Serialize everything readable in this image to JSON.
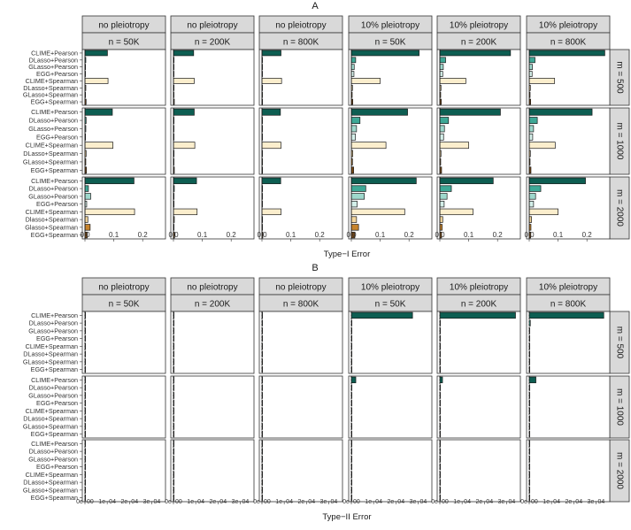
{
  "colors": {
    "strip_fill": "#d9d9d9",
    "strip_stroke": "#333333",
    "panel_stroke": "#333333",
    "bar_stroke": "#1a1a1a",
    "bar_pearson_1": "#0d5e52",
    "bar_pearson_2": "#3ea896",
    "bar_pearson_3": "#9ed8cc",
    "bar_pearson_4": "#d4efe9",
    "bar_spearman_1": "#fbeecd",
    "bar_spearman_2": "#f2d59b",
    "bar_spearman_3": "#c7842d",
    "bar_spearman_4": "#7d4a12"
  },
  "chart_data": [
    {
      "type": "bar",
      "orientation": "horizontal",
      "panel_label": "A",
      "xlabel": "Type−I Error",
      "xlim": [
        0,
        0.27
      ],
      "xticks": [
        0.0,
        0.1,
        0.2
      ],
      "xtick_labels": [
        "0.0",
        "0.1",
        "0.2"
      ],
      "grid": false,
      "col_strips_top": [
        "no pleiotropy",
        "no pleiotropy",
        "no pleiotropy",
        "10% pleiotropy",
        "10% pleiotropy",
        "10% pleiotropy"
      ],
      "col_strips_bottom": [
        "n = 50K",
        "n = 200K",
        "n = 800K",
        "n = 50K",
        "n = 200K",
        "n = 800K"
      ],
      "row_strips": [
        "m = 500",
        "m = 1000",
        "m = 2000"
      ],
      "categories": [
        "CLIME+Pearson",
        "DLasso+Pearson",
        "GLasso+Pearson",
        "EGG+Pearson",
        "CLIME+Spearman",
        "DLasso+Spearman",
        "GLasso+Spearman",
        "EGG+Spearman"
      ],
      "row_categories": [
        [
          "CLIME+Pearson",
          "DLasso+Pearson",
          "GLasso+Pearson",
          "EGG+Pearson",
          "CLIME+Spearman",
          "DLasso+Spearman",
          "GLasso+Spearman",
          "EGG+Spearman"
        ],
        [
          "CLIME+Pearson",
          "DLasso+Pearson",
          "GLasso+Pearson",
          "EGG+Pearson",
          "CLIME+Spearman",
          "DLasso+Spearman",
          "GLasso+Spearman",
          "EGG+Spearman"
        ],
        [
          "CLIME+Pearson",
          "DLasso+Pearson",
          "GLasso+Pearson",
          "EGG+Pearson",
          "CLIME+Spearman",
          "Dlasso+Spearman",
          "Glasso+Spearman",
          "EGG+Spearman"
        ]
      ],
      "panels": [
        [
          [
            0.078,
            0.003,
            0.002,
            0.001,
            0.08,
            0.003,
            0.002,
            0.004
          ],
          [
            0.07,
            0.002,
            0.001,
            0.001,
            0.072,
            0.002,
            0.001,
            0.003
          ],
          [
            0.066,
            0.001,
            0.001,
            0.001,
            0.068,
            0.001,
            0.001,
            0.002
          ],
          [
            0.235,
            0.015,
            0.01,
            0.009,
            0.1,
            0.004,
            0.003,
            0.005
          ],
          [
            0.245,
            0.02,
            0.012,
            0.01,
            0.09,
            0.004,
            0.003,
            0.005
          ],
          [
            0.262,
            0.02,
            0.011,
            0.01,
            0.088,
            0.004,
            0.003,
            0.005
          ]
        ],
        [
          [
            0.095,
            0.004,
            0.003,
            0.002,
            0.097,
            0.004,
            0.003,
            0.005
          ],
          [
            0.072,
            0.002,
            0.001,
            0.001,
            0.074,
            0.002,
            0.001,
            0.003
          ],
          [
            0.064,
            0.001,
            0.001,
            0.001,
            0.066,
            0.001,
            0.001,
            0.002
          ],
          [
            0.195,
            0.03,
            0.018,
            0.014,
            0.12,
            0.005,
            0.004,
            0.008
          ],
          [
            0.21,
            0.03,
            0.016,
            0.013,
            0.1,
            0.004,
            0.003,
            0.006
          ],
          [
            0.218,
            0.028,
            0.015,
            0.012,
            0.09,
            0.004,
            0.003,
            0.006
          ]
        ],
        [
          [
            0.17,
            0.012,
            0.02,
            0.006,
            0.172,
            0.01,
            0.018,
            0.008
          ],
          [
            0.08,
            0.003,
            0.002,
            0.002,
            0.082,
            0.003,
            0.002,
            0.004
          ],
          [
            0.065,
            0.002,
            0.001,
            0.001,
            0.066,
            0.002,
            0.001,
            0.003
          ],
          [
            0.225,
            0.05,
            0.045,
            0.02,
            0.185,
            0.018,
            0.025,
            0.012
          ],
          [
            0.185,
            0.04,
            0.025,
            0.015,
            0.115,
            0.01,
            0.008,
            0.006
          ],
          [
            0.195,
            0.04,
            0.022,
            0.015,
            0.1,
            0.008,
            0.006,
            0.005
          ]
        ]
      ]
    },
    {
      "type": "bar",
      "orientation": "horizontal",
      "panel_label": "B",
      "xlabel": "Type−II Error",
      "xlim": [
        0,
        0.00035
      ],
      "xticks": [
        0,
        0.0001,
        0.0002,
        0.0003
      ],
      "xtick_labels": [
        "0e+00",
        "1e−04",
        "2e−04",
        "3e−04"
      ],
      "grid": false,
      "col_strips_top": [
        "no pleiotropy",
        "no pleiotropy",
        "no pleiotropy",
        "10% pleiotropy",
        "10% pleiotropy",
        "10% pleiotropy"
      ],
      "col_strips_bottom": [
        "n = 50K",
        "n = 200K",
        "n = 800K",
        "n = 50K",
        "n = 200K",
        "n = 800K"
      ],
      "row_strips": [
        "m = 500",
        "m = 1000",
        "m = 2000"
      ],
      "categories": [
        "CLIME+Pearson",
        "DLasso+Pearson",
        "GLasso+Pearson",
        "EGG+Pearson",
        "CLIME+Spearman",
        "DLasso+Spearman",
        "GLasso+Spearman",
        "EGG+Spearman"
      ],
      "row_categories": [
        [
          "CLIME+Pearson",
          "DLasso+Pearson",
          "GLasso+Pearson",
          "EGG+Pearson",
          "CLIME+Spearman",
          "DLasso+Spearman",
          "GLasso+Spearman",
          "EGG+Spearman"
        ],
        [
          "CLIME+Pearson",
          "DLasso+Pearson",
          "GLasso+Pearson",
          "EGG+Pearson",
          "CLIME+Spearman",
          "DLasso+Spearman",
          "GLasso+Spearman",
          "EGG+Spearman"
        ],
        [
          "CLIME+Pearson",
          "DLasso+Pearson",
          "GLasso+Pearson",
          "EGG+Pearson",
          "CLIME+Spearman",
          "DLasso+Spearman",
          "GLasso+Spearman",
          "EGG+Spearman"
        ]
      ],
      "panels": [
        [
          [
            0,
            0,
            0,
            0,
            0,
            0,
            0,
            0
          ],
          [
            0,
            0,
            0,
            0,
            0,
            0,
            0,
            0
          ],
          [
            0,
            0,
            0,
            0,
            0,
            0,
            0,
            0
          ],
          [
            0.000275,
            0,
            0,
            0,
            0,
            0,
            0,
            0
          ],
          [
            0.00034,
            0,
            0,
            0,
            0,
            0,
            0,
            0
          ],
          [
            0.000335,
            5e-06,
            0,
            0,
            0,
            0,
            0,
            0
          ]
        ],
        [
          [
            0,
            0,
            0,
            0,
            0,
            0,
            0,
            0
          ],
          [
            0,
            0,
            0,
            0,
            0,
            0,
            0,
            0
          ],
          [
            0,
            0,
            0,
            0,
            0,
            0,
            0,
            0
          ],
          [
            2e-05,
            0,
            0,
            0,
            0,
            0,
            0,
            0
          ],
          [
            1.2e-05,
            0,
            0,
            0,
            0,
            0,
            0,
            0
          ],
          [
            3e-05,
            0,
            0,
            0,
            0,
            0,
            0,
            0
          ]
        ],
        [
          [
            0,
            0,
            0,
            0,
            0,
            0,
            0,
            0
          ],
          [
            0,
            0,
            0,
            0,
            0,
            0,
            0,
            0
          ],
          [
            0,
            0,
            0,
            0,
            0,
            0,
            0,
            0
          ],
          [
            0,
            0,
            0,
            0,
            0,
            0,
            0,
            0
          ],
          [
            0,
            0,
            0,
            0,
            0,
            0,
            0,
            0
          ],
          [
            0,
            0,
            0,
            0,
            0,
            0,
            0,
            0
          ]
        ]
      ]
    }
  ]
}
